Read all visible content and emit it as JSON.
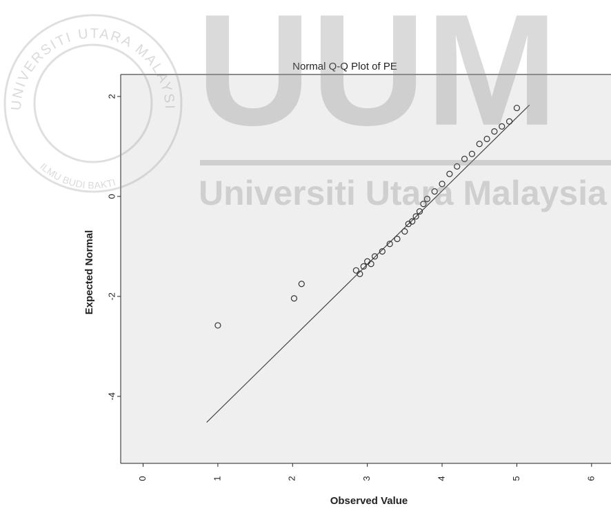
{
  "chart_data": {
    "type": "scatter",
    "title": "Normal Q-Q Plot of PE",
    "x_label": "Observed Value",
    "y_label": "Expected Normal",
    "x": [
      1.0,
      2.02,
      2.12,
      2.85,
      2.9,
      2.95,
      3.0,
      3.05,
      3.1,
      3.2,
      3.3,
      3.4,
      3.5,
      3.55,
      3.6,
      3.65,
      3.7,
      3.75,
      3.8,
      3.9,
      4.0,
      4.1,
      4.2,
      4.3,
      4.4,
      4.5,
      4.6,
      4.7,
      4.8,
      4.9,
      5.0
    ],
    "values": [
      -2.58,
      -2.04,
      -1.75,
      -1.48,
      -1.55,
      -1.4,
      -1.3,
      -1.35,
      -1.2,
      -1.1,
      -0.95,
      -0.85,
      -0.7,
      -0.55,
      -0.5,
      -0.4,
      -0.3,
      -0.15,
      -0.05,
      0.1,
      0.25,
      0.45,
      0.6,
      0.75,
      0.85,
      1.05,
      1.15,
      1.3,
      1.4,
      1.5,
      1.77
    ],
    "color": "#333333",
    "reference_line": {
      "x": [
        0.85,
        5.17
      ],
      "y": [
        -4.52,
        1.83
      ]
    },
    "xlim": [
      -0.3,
      6.26
    ],
    "xticks": [
      0,
      1,
      2,
      3,
      4,
      5,
      6
    ],
    "ylim": [
      -5.34,
      2.44
    ],
    "yticks": [
      -4,
      -2,
      0,
      2
    ],
    "grid": false
  },
  "watermark": {
    "big": "UUM",
    "name": "Universiti Utara Malaysia",
    "seal_top": "UNIVERSITI UTARA MALAYSIA",
    "seal_bottom": "ILMU BUDI BAKTI"
  }
}
